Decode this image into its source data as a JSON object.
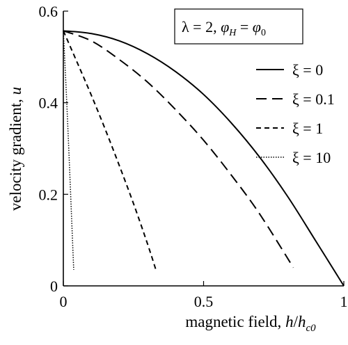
{
  "chart_data": {
    "type": "line",
    "title": "",
    "xlabel": {
      "text": "magnetic field, ",
      "math": "h",
      "slash": "/",
      "math2": "h",
      "sub": "c0"
    },
    "ylabel": {
      "text": "velocity gradient, ",
      "math": "u"
    },
    "xlim": [
      0,
      1
    ],
    "ylim": [
      0,
      0.6
    ],
    "x_ticks": [
      0,
      0.5,
      1
    ],
    "x_tick_labels": [
      "0",
      "0.5",
      "1"
    ],
    "y_ticks": [
      0,
      0.2,
      0.4,
      0.6
    ],
    "y_tick_labels": [
      "0",
      "0.2",
      "0.4",
      "0.6"
    ],
    "grid": false,
    "legend_position": "right",
    "annotation": {
      "lambda": "λ = 2, ",
      "phi1": "φ",
      "phi1_sub": "H",
      "eq": " = ",
      "phi2": "φ",
      "phi2_sub": "0"
    },
    "series": [
      {
        "name": "ξ = 0",
        "style": "solid",
        "x": [
          0,
          0.1,
          0.2,
          0.3,
          0.4,
          0.5,
          0.6,
          0.7,
          0.8,
          0.9,
          1.0
        ],
        "y": [
          0.557,
          0.551,
          0.535,
          0.507,
          0.468,
          0.418,
          0.355,
          0.281,
          0.195,
          0.098,
          0
        ]
      },
      {
        "name": "ξ = 0.1",
        "style": "long-dash",
        "x": [
          0,
          0.1,
          0.2,
          0.3,
          0.4,
          0.5,
          0.6,
          0.7,
          0.82
        ],
        "y": [
          0.557,
          0.535,
          0.494,
          0.445,
          0.385,
          0.318,
          0.241,
          0.157,
          0.04
        ]
      },
      {
        "name": "ξ = 1",
        "style": "short-dash",
        "x": [
          0,
          0.05,
          0.1,
          0.15,
          0.2,
          0.25,
          0.3,
          0.33
        ],
        "y": [
          0.557,
          0.487,
          0.416,
          0.341,
          0.262,
          0.18,
          0.092,
          0.035
        ]
      },
      {
        "name": "ξ = 10",
        "style": "dotted",
        "x": [
          0,
          0.01,
          0.02,
          0.03,
          0.037
        ],
        "y": [
          0.557,
          0.43,
          0.29,
          0.14,
          0.035
        ]
      }
    ]
  }
}
